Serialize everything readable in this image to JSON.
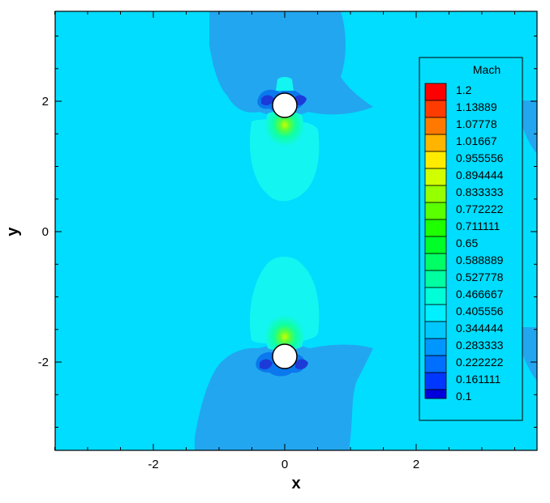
{
  "chart_data": {
    "type": "heatmap",
    "xlabel": "x",
    "ylabel": "y",
    "xlim": [
      -3.5,
      3.85
    ],
    "ylim": [
      -3.35,
      3.35
    ],
    "x_ticks": [
      -2,
      0,
      2
    ],
    "y_ticks": [
      2,
      0,
      -2
    ],
    "x_tick_labels": [
      "-2",
      "0",
      "2"
    ],
    "y_tick_labels": [
      "2",
      "0",
      "-2"
    ],
    "legend": {
      "title": "Mach",
      "placement": "right",
      "levels": [
        "1.2",
        "1.13889",
        "1.07778",
        "1.01667",
        "0.955556",
        "0.894444",
        "0.833333",
        "0.772222",
        "0.711111",
        "0.65",
        "0.588889",
        "0.527778",
        "0.466667",
        "0.405556",
        "0.344444",
        "0.283333",
        "0.222222",
        "0.161111",
        "0.1"
      ],
      "colors": [
        "#ff0000",
        "#ff3c00",
        "#ff7800",
        "#ffb400",
        "#ffeb00",
        "#d2ff00",
        "#96ff00",
        "#5aff00",
        "#1eff00",
        "#00ff28",
        "#00ff64",
        "#00ffa0",
        "#00ffd7",
        "#00f0ff",
        "#00c8ff",
        "#0096ff",
        "#006eff",
        "#0037ff",
        "#0000dc"
      ]
    },
    "cylinders": [
      {
        "x": 0,
        "y": 1.92,
        "radius": 0.19
      },
      {
        "x": 0,
        "y": -1.92,
        "radius": 0.19
      }
    ],
    "field_colors": {
      "background": "#00ddff",
      "low": "#22a6f0",
      "lower": "#0b78ee",
      "lowest": "#1c3ad8",
      "wake": "#12f5f0",
      "wake_core": "#10ffd0",
      "near_wall": "#5aff3a"
    },
    "grid": false
  }
}
